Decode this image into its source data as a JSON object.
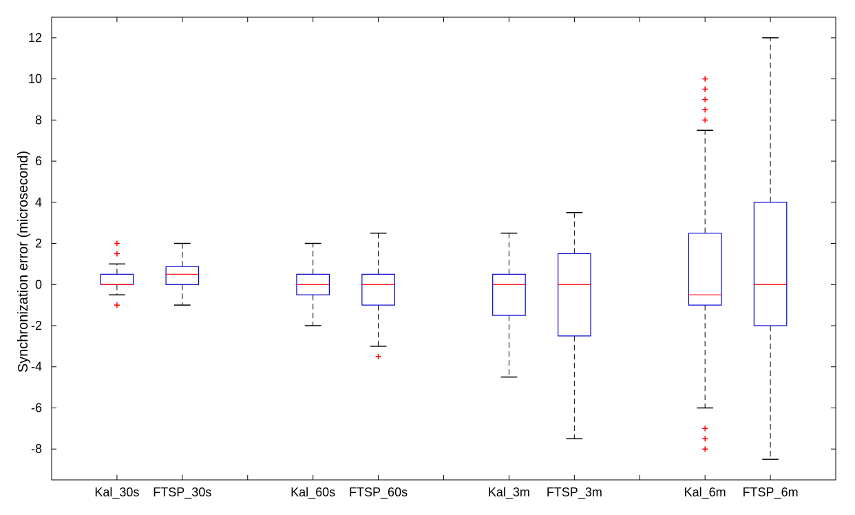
{
  "chart_data": {
    "type": "box",
    "title": "",
    "xlabel": "",
    "ylabel": "Synchronization error (microsecond)",
    "ylim": [
      -9.5,
      13
    ],
    "yticks": [
      -8,
      -6,
      -4,
      -2,
      0,
      2,
      4,
      6,
      8,
      10,
      12
    ],
    "ytick_labels": [
      "-8",
      "-6",
      "-4",
      "-2",
      "0",
      "2",
      "4",
      "6",
      "8",
      "10",
      "12"
    ],
    "categories": [
      "Kal_30s",
      "FTSP_30s",
      "Kal_60s",
      "FTSP_60s",
      "Kal_3m",
      "FTSP_3m",
      "Kal_6m",
      "FTSP_6m"
    ],
    "x_positions": [
      1,
      2,
      4,
      5,
      7,
      8,
      10,
      11
    ],
    "xlim": [
      0,
      12
    ],
    "grid": false,
    "colors": {
      "box": "#0000cc",
      "median": "#ff0000",
      "whisker": "#000000",
      "outlier": "#ff0000"
    },
    "boxes": [
      {
        "label": "Kal_30s",
        "whisker_low": -0.5,
        "q1": 0,
        "median": 0,
        "q3": 0.5,
        "whisker_high": 1,
        "outliers": [
          2,
          1.5,
          -1
        ]
      },
      {
        "label": "FTSP_30s",
        "whisker_low": -1,
        "q1": 0,
        "median": 0.5,
        "q3": 0.875,
        "whisker_high": 2,
        "outliers": []
      },
      {
        "label": "Kal_60s",
        "whisker_low": -2,
        "q1": -0.5,
        "median": 0,
        "q3": 0.5,
        "whisker_high": 2,
        "outliers": []
      },
      {
        "label": "FTSP_60s",
        "whisker_low": -3,
        "q1": -1,
        "median": 0,
        "q3": 0.5,
        "whisker_high": 2.5,
        "outliers": [
          -3.5
        ]
      },
      {
        "label": "Kal_3m",
        "whisker_low": -4.5,
        "q1": -1.5,
        "median": 0,
        "q3": 0.5,
        "whisker_high": 2.5,
        "outliers": []
      },
      {
        "label": "FTSP_3m",
        "whisker_low": -7.5,
        "q1": -2.5,
        "median": 0,
        "q3": 1.5,
        "whisker_high": 3.5,
        "outliers": []
      },
      {
        "label": "Kal_6m",
        "whisker_low": -6,
        "q1": -1,
        "median": -0.5,
        "q3": 2.5,
        "whisker_high": 7.5,
        "outliers": [
          8,
          8.5,
          9,
          9.5,
          10,
          -7,
          -7.5,
          -8
        ]
      },
      {
        "label": "FTSP_6m",
        "whisker_low": -8.5,
        "q1": -2,
        "median": 0,
        "q3": 4,
        "whisker_high": 12,
        "outliers": []
      }
    ]
  }
}
